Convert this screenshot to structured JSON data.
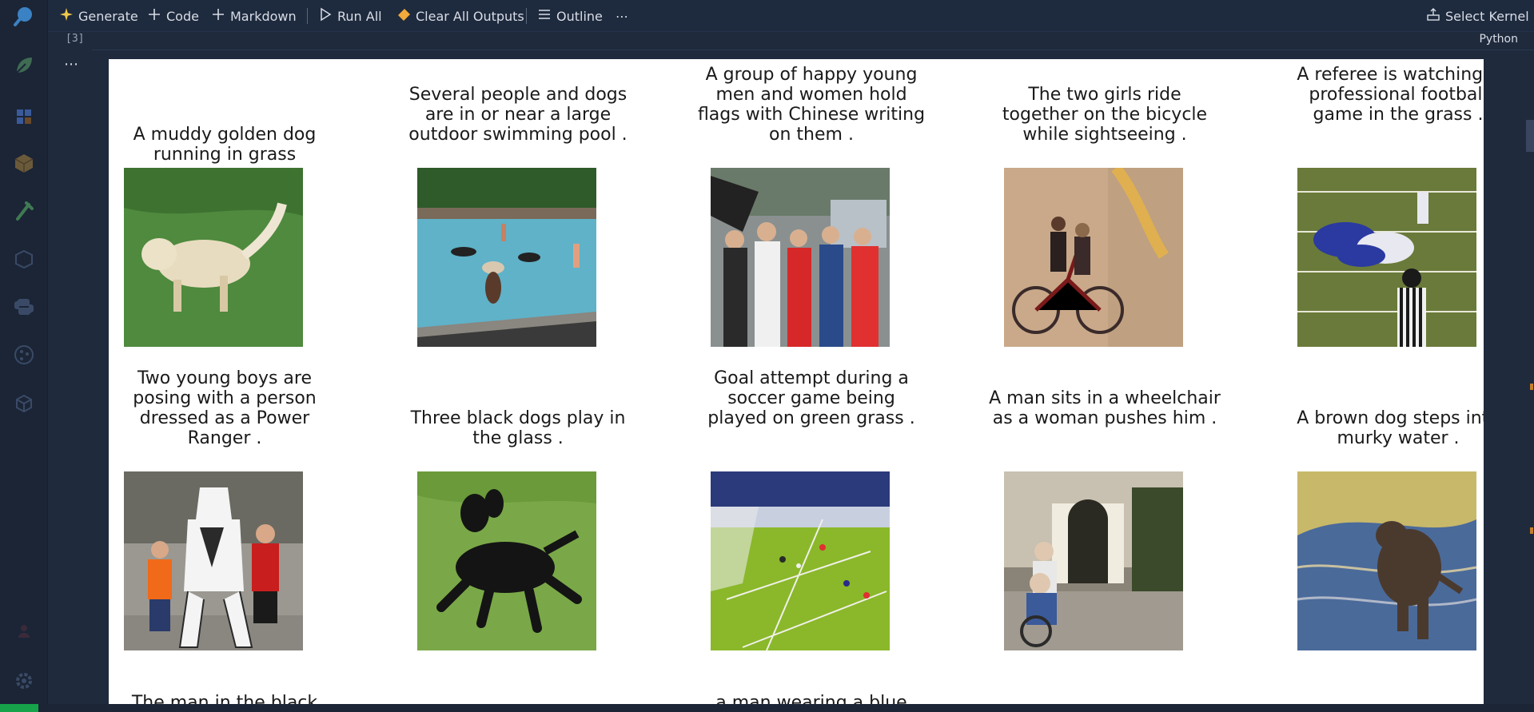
{
  "toolbar": {
    "generate_label": "Generate",
    "code_label": "Code",
    "markdown_label": "Markdown",
    "run_all_label": "Run All",
    "clear_outputs_label": "Clear All Outputs",
    "outline_label": "Outline",
    "more_label": "⋯",
    "select_kernel_label": "Select Kernel"
  },
  "cell": {
    "execution_count": "[3]",
    "language": "Python",
    "more_label": "⋯"
  },
  "images": [
    {
      "caption": "A muddy golden dog running in grass",
      "scene": "dog-grass"
    },
    {
      "caption": "Several people and dogs are in or near a large outdoor swimming pool .",
      "scene": "pool"
    },
    {
      "caption": "A group of happy young men and women hold flags with Chinese writing on them .",
      "scene": "crowd"
    },
    {
      "caption": "The two girls ride together on the bicycle while sightseeing .",
      "scene": "bicycle"
    },
    {
      "caption": "A referee is watching a professional football game in the grass .",
      "scene": "football"
    },
    {
      "caption": "Two young boys are posing with a person dressed as a Power Ranger .",
      "scene": "power-ranger"
    },
    {
      "caption": "Three black dogs play in the glass .",
      "scene": "black-dogs"
    },
    {
      "caption": "Goal attempt during a soccer game being played on green grass .",
      "scene": "soccer"
    },
    {
      "caption": "A man sits in a wheelchair as a woman pushes him .",
      "scene": "wheelchair"
    },
    {
      "caption": "A brown dog steps into murky water .",
      "scene": "murky-water"
    },
    {
      "caption": "The man in the black",
      "scene": ""
    },
    {
      "caption": "a man wearing a blue",
      "scene": ""
    }
  ]
}
